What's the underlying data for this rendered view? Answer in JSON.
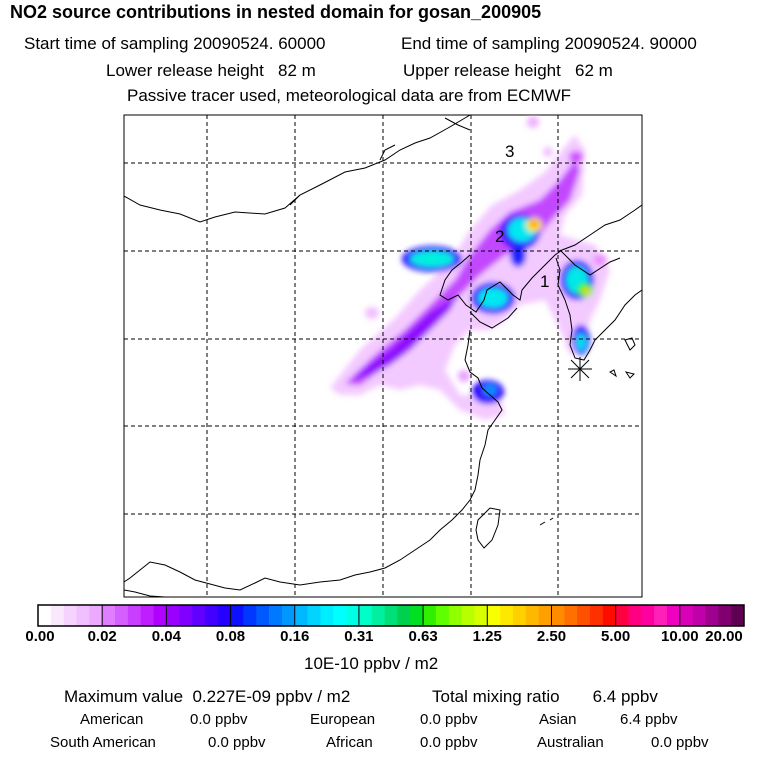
{
  "header": {
    "title": "NO2 source contributions in nested domain for gosan_200905",
    "start_label": "Start time of sampling 20090524. 60000",
    "end_label": "End time of sampling 20090524. 90000",
    "lower_label": "Lower release height   82 m",
    "upper_label": "Upper release height   62 m",
    "tracer_note": "Passive tracer used, meteorological data are from ECMWF"
  },
  "map": {
    "markers": [
      "1",
      "2",
      "3"
    ],
    "receptor_symbol": "✳"
  },
  "colorbar": {
    "unit": "10E-10 ppbv / m2",
    "ticks": [
      "0.00",
      "0.02",
      "0.04",
      "0.08",
      "0.16",
      "0.31",
      "0.63",
      "1.25",
      "2.50",
      "5.00",
      "10.00",
      "20.00"
    ],
    "colors": [
      [
        "#ffffff",
        "#fbe8ff",
        "#f6d3ff",
        "#f1beff",
        "#ecaaff"
      ],
      [
        "#df7fff",
        "#d55fff",
        "#ca3fff",
        "#bf1fff",
        "#b000ff"
      ],
      [
        "#9a00ff",
        "#8000ff",
        "#6200ff",
        "#4400ff",
        "#2600ff"
      ],
      [
        "#0c12ff",
        "#0038ff",
        "#0058ff",
        "#0078ff",
        "#0098ff"
      ],
      [
        "#00b8ff",
        "#00d4ff",
        "#00ecff",
        "#00ffff",
        "#00ffe4"
      ],
      [
        "#00ffc8",
        "#00f0a0",
        "#00e078",
        "#00d050",
        "#00e020"
      ],
      [
        "#30f000",
        "#60ff00",
        "#90ff00",
        "#b8ff00",
        "#d8ff00"
      ],
      [
        "#f8ff00",
        "#ffe800",
        "#ffd000",
        "#ffb800",
        "#ffa000"
      ],
      [
        "#ff8c00",
        "#ff7000",
        "#ff5000",
        "#ff3000",
        "#ff0c00"
      ],
      [
        "#ff0040",
        "#ff0080",
        "#ff00a0",
        "#ff20b8",
        "#f000c0"
      ],
      [
        "#d800b8",
        "#c000a8",
        "#a00090",
        "#800070",
        "#600050"
      ]
    ]
  },
  "footer": {
    "max_value": "Maximum value  0.227E-09 ppbv / m2",
    "total_mixing": "Total mixing ratio       6.4 ppbv",
    "american_label": "American",
    "american_value": "0.0 ppbv",
    "european_label": "European",
    "european_value": "0.0 ppbv",
    "asian_label": "Asian",
    "asian_value": "6.4 ppbv",
    "south_american_label": "South American",
    "south_american_value": "0.0 ppbv",
    "african_label": "African",
    "african_value": "0.0 ppbv",
    "australian_label": "Australian",
    "australian_value": "0.0 ppbv"
  }
}
